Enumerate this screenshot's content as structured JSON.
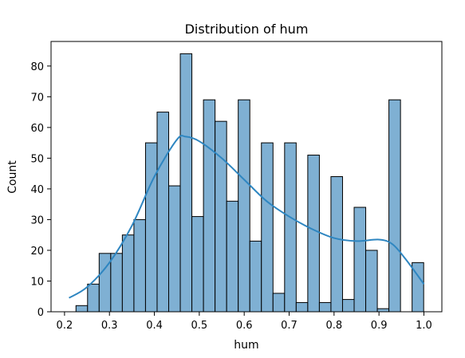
{
  "chart_data": {
    "type": "histogram",
    "title": "Distribution of hum",
    "xlabel": "hum",
    "ylabel": "Count",
    "xlim": [
      0.17,
      1.04
    ],
    "ylim": [
      0,
      88
    ],
    "x_ticks": [
      "0.2",
      "0.3",
      "0.4",
      "0.5",
      "0.6",
      "0.7",
      "0.8",
      "0.9",
      "1.0"
    ],
    "y_ticks": [
      "0",
      "10",
      "20",
      "30",
      "40",
      "50",
      "60",
      "70",
      "80"
    ],
    "bins": {
      "start": 0.2255,
      "width": 0.0258,
      "counts": [
        2,
        9,
        19,
        19,
        25,
        30,
        55,
        65,
        41,
        84,
        31,
        69,
        62,
        36,
        69,
        23,
        55,
        6,
        55,
        3,
        51,
        3,
        44,
        4,
        34,
        20,
        1,
        69,
        0,
        16
      ]
    },
    "kde": {
      "x": [
        0.21,
        0.25,
        0.3,
        0.35,
        0.4,
        0.45,
        0.47,
        0.5,
        0.55,
        0.6,
        0.65,
        0.7,
        0.75,
        0.8,
        0.85,
        0.9,
        0.93,
        0.96,
        1.0
      ],
      "y": [
        4.5,
        8,
        16,
        28,
        44,
        56,
        57,
        55.5,
        50,
        43,
        36,
        31,
        27,
        24,
        23,
        23.5,
        22,
        17,
        9
      ]
    },
    "bar_color": "#7fb0d3",
    "line_color": "#2e86c1",
    "grid": false
  }
}
